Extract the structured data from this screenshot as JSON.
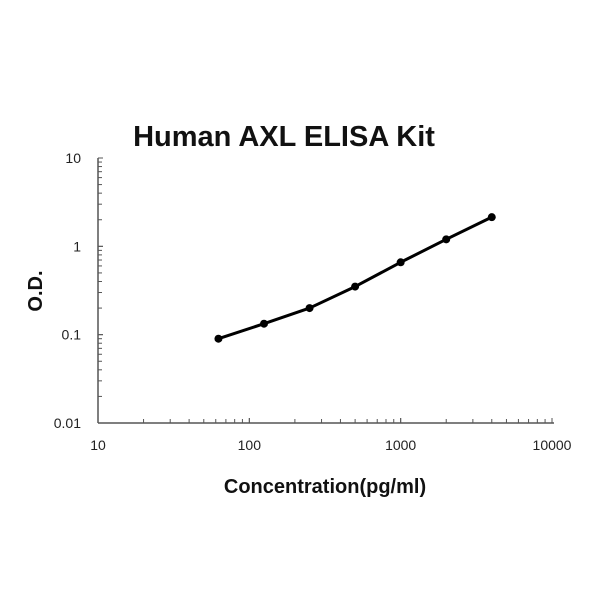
{
  "chart_data": {
    "type": "line",
    "title": "Human AXL ELISA Kit",
    "xlabel": "Concentration(pg/ml)",
    "ylabel": "O.D.",
    "xscale": "log",
    "yscale": "log",
    "xlim": [
      10,
      10000
    ],
    "ylim": [
      0.01,
      10
    ],
    "xticks": [
      "10",
      "100",
      "1000",
      "10000"
    ],
    "yticks": [
      "0.01",
      "0.1",
      "1",
      "10"
    ],
    "grid": false,
    "series": [
      {
        "x": [
          62.5,
          125,
          250,
          500,
          1000,
          2000,
          4000
        ],
        "y": [
          0.09,
          0.133,
          0.2,
          0.35,
          0.66,
          1.2,
          2.14
        ],
        "color": "#000000",
        "marker": "circle"
      }
    ]
  }
}
